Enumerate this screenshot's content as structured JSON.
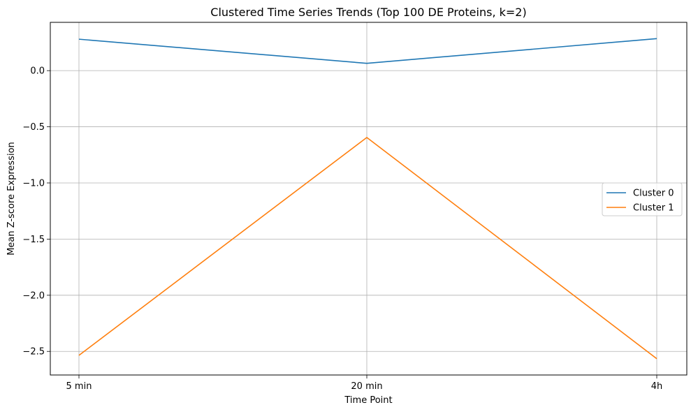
{
  "chart_data": {
    "type": "line",
    "title": "Clustered Time Series Trends (Top 100 DE Proteins, k=2)",
    "xlabel": "Time Point",
    "ylabel": "Mean Z-score Expression",
    "categories": [
      "5 min",
      "20 min",
      "4h"
    ],
    "series": [
      {
        "name": "Cluster 0",
        "values": [
          0.28,
          0.065,
          0.285
        ],
        "color": "#1f77b4"
      },
      {
        "name": "Cluster 1",
        "values": [
          -2.535,
          -0.595,
          -2.565
        ],
        "color": "#ff7f0e"
      }
    ],
    "yticks": [
      0.0,
      -0.5,
      -1.0,
      -1.5,
      -2.0,
      -2.5
    ],
    "ytick_labels": [
      "0.0",
      "−0.5",
      "−1.0",
      "−1.5",
      "−2.0",
      "−2.5"
    ],
    "ylim": [
      -2.71,
      0.43
    ],
    "grid": true,
    "legend_position": "center-right"
  }
}
